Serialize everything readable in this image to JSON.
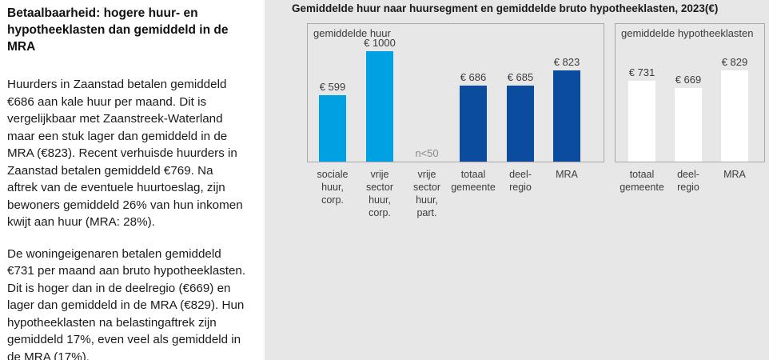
{
  "left_column": {
    "heading": "Betaalbaarheid: hogere huur- en\nhypotheeklasten dan gemiddeld in de\nMRA",
    "paragraphs": [
      "Huurders in Zaanstad betalen gemiddeld\n€686 aan kale huur per maand. Dit is\nvergelijkbaar met Zaanstreek-Waterland\nmaar een stuk lager dan gemiddeld in de\nMRA (€823). Recent verhuisde huurders in\nZaanstad betalen gemiddeld €769. Na\naftrek van de eventuele huurtoeslag, zijn\nbewoners gemiddeld 26% van hun inkomen\nkwijt aan huur (MRA: 28%).",
      "De woningeigenaren betalen gemiddeld\n€731 per maand aan bruto hypotheeklasten.\nDit is hoger dan in de deelregio (€669) en\nlager dan gemiddeld in de MRA (€829). Hun\nhypotheeklasten na belastingaftrek zijn\ngemiddeld 17%, even veel als gemiddeld in\nde MRA (17%)."
    ]
  },
  "figure": {
    "title": "Gemiddelde huur naar huursegment en gemiddelde bruto hypotheeklasten, 2023(€)"
  },
  "chart_data": [
    {
      "type": "bar",
      "title": "gemiddelde huur",
      "categories": [
        "sociale\nhuur,\ncorp.",
        "vrije\nsector\nhuur,\ncorp.",
        "vrije\nsector\nhuur,\npart.",
        "totaal\ngemeente",
        "deel-\nregio",
        "MRA"
      ],
      "values": [
        599,
        1000,
        null,
        686,
        685,
        823
      ],
      "value_labels": [
        "€ 599",
        "€ 1000",
        "",
        "€ 686",
        "€ 685",
        "€ 823"
      ],
      "note_label": "n<50",
      "note_index": 2,
      "bar_colors": [
        "#00a1e2",
        "#00a1e2",
        null,
        "#0c4c9f",
        "#0c4c9f",
        "#0c4c9f"
      ],
      "ylim": [
        0,
        1150
      ],
      "grid": false,
      "y_axis_visible": false,
      "legend_position": "none"
    },
    {
      "type": "bar",
      "title": "gemiddelde hypotheeklasten",
      "categories": [
        "totaal\ngemeente",
        "deel-\nregio",
        "MRA"
      ],
      "values": [
        731,
        669,
        829
      ],
      "value_labels": [
        "€ 731",
        "€ 669",
        "€ 829"
      ],
      "bar_colors": [
        "#ffffff",
        "#ffffff",
        "#ffffff"
      ],
      "ylim": [
        0,
        1150
      ],
      "grid": false,
      "y_axis_visible": false,
      "legend_position": "none"
    }
  ],
  "colors": {
    "panel_bg": "#e7e7e7",
    "box_border": "#a9a9a9",
    "light_blue": "#00a1e2",
    "dark_blue": "#0c4c9f",
    "white_bar": "#ffffff",
    "chart_text": "#3c3c3b",
    "note_gray": "#8c8c8c",
    "body_text": "#1a1a1a"
  }
}
